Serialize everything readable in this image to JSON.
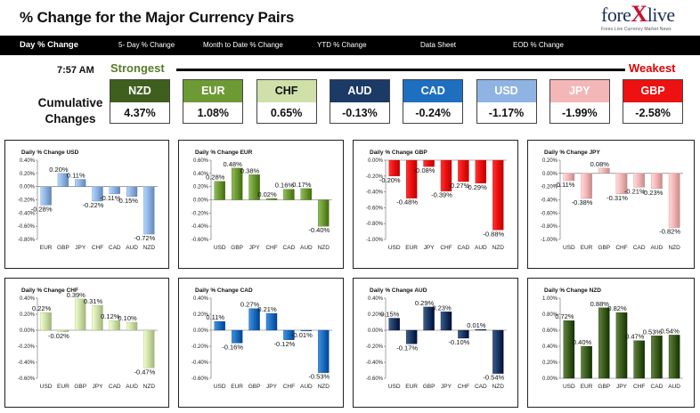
{
  "header": {
    "title": "% Change for the Major Currency Pairs"
  },
  "logo": {
    "main_a": "fore",
    "main_x": "X",
    "main_b": "live",
    "tagline": "Forex Live Currency Market News"
  },
  "tabs": [
    "Day % Change",
    "5- Day % Change",
    "Month to Date % Change",
    "YTD % Change",
    "Data Sheet",
    "EOD % Change"
  ],
  "summary": {
    "time": "7:57 AM",
    "strongest_label": "Strongest",
    "weakest_label": "Weakest",
    "cumulative_label_1": "Cumulative",
    "cumulative_label_2": "Changes",
    "ranking": [
      {
        "currency": "NZD",
        "value": "4.37%",
        "color": "#3f5f1f",
        "text_color": "#ffffff"
      },
      {
        "currency": "EUR",
        "value": "1.08%",
        "color": "#6e9a36",
        "text_color": "#ffffff"
      },
      {
        "currency": "CHF",
        "value": "0.65%",
        "color": "#cfe0a8",
        "text_color": "#111111"
      },
      {
        "currency": "AUD",
        "value": "-0.13%",
        "color": "#1b3a66",
        "text_color": "#ffffff"
      },
      {
        "currency": "CAD",
        "value": "-0.24%",
        "color": "#1f6fc0",
        "text_color": "#ffffff"
      },
      {
        "currency": "USD",
        "value": "-1.17%",
        "color": "#8fb4e3",
        "text_color": "#ffffff"
      },
      {
        "currency": "JPY",
        "value": "-1.99%",
        "color": "#f4b7b7",
        "text_color": "#ffffff"
      },
      {
        "currency": "GBP",
        "value": "-2.58%",
        "color": "#ee1111",
        "text_color": "#ffffff"
      }
    ]
  },
  "chart_data": [
    {
      "type": "bar",
      "title": "Daily % Change USD",
      "categories": [
        "EUR",
        "GBP",
        "JPY",
        "CHF",
        "CAD",
        "AUD",
        "NZD"
      ],
      "values": [
        -0.28,
        0.2,
        0.11,
        -0.22,
        -0.11,
        -0.15,
        -0.72
      ],
      "labels": [
        "-0.28%",
        "0.20%",
        "0.11%",
        "-0.22%",
        "-0.11%",
        "-0.15%",
        "-0.72%"
      ],
      "ylim": [
        -0.8,
        0.4
      ],
      "yticks": [
        -0.8,
        -0.6,
        -0.4,
        -0.2,
        0,
        0.2,
        0.4
      ],
      "ytick_labels": [
        "-0.80%",
        "-0.60%",
        "-0.40%",
        "-0.20%",
        "0.00%",
        "0.20%",
        "0.40%"
      ],
      "color": "#8fb4e3"
    },
    {
      "type": "bar",
      "title": "Daily % Change EUR",
      "categories": [
        "USD",
        "GBP",
        "JPY",
        "CHF",
        "CAD",
        "AUD",
        "NZD"
      ],
      "values": [
        0.28,
        0.48,
        0.38,
        0.02,
        0.16,
        0.17,
        -0.4
      ],
      "labels": [
        "0.28%",
        "0.48%",
        "0.38%",
        "0.02%",
        "0.16%",
        "0.17%",
        "-0.40%"
      ],
      "ylim": [
        -0.6,
        0.6
      ],
      "yticks": [
        -0.6,
        -0.4,
        -0.2,
        0,
        0.2,
        0.4,
        0.6
      ],
      "ytick_labels": [
        "-0.60%",
        "-0.40%",
        "-0.20%",
        "0.00%",
        "0.20%",
        "0.40%",
        "0.60%"
      ],
      "color": "#6e9a36"
    },
    {
      "type": "bar",
      "title": "Daily % Change GBP",
      "categories": [
        "USD",
        "EUR",
        "JPY",
        "CHF",
        "CAD",
        "AUD",
        "NZD"
      ],
      "values": [
        -0.2,
        -0.48,
        -0.08,
        -0.39,
        -0.27,
        -0.29,
        -0.88
      ],
      "labels": [
        "-0.20%",
        "-0.48%",
        "-0.08%",
        "-0.39%",
        "-0.27%",
        "-0.29%",
        "-0.88%"
      ],
      "ylim": [
        -1.0,
        0
      ],
      "yticks": [
        -1.0,
        -0.8,
        -0.6,
        -0.4,
        -0.2,
        0
      ],
      "ytick_labels": [
        "-1.00%",
        "-0.80%",
        "-0.60%",
        "-0.40%",
        "-0.20%",
        "0.00%"
      ],
      "color": "#ee1111"
    },
    {
      "type": "bar",
      "title": "Daily % Change JPY",
      "categories": [
        "USD",
        "EUR",
        "GBP",
        "CHF",
        "CAD",
        "AUD",
        "NZD"
      ],
      "values": [
        -0.11,
        -0.38,
        0.08,
        -0.31,
        -0.21,
        -0.23,
        -0.82
      ],
      "labels": [
        "-0.11%",
        "-0.38%",
        "0.08%",
        "-0.31%",
        "-0.21%",
        "-0.23%",
        "-0.82%"
      ],
      "ylim": [
        -1.0,
        0.2
      ],
      "yticks": [
        -1.0,
        -0.8,
        -0.6,
        -0.4,
        -0.2,
        0,
        0.2
      ],
      "ytick_labels": [
        "-1.00%",
        "-0.80%",
        "-0.60%",
        "-0.40%",
        "-0.20%",
        "0.00%",
        "0.20%"
      ],
      "color": "#f4b7b7"
    },
    {
      "type": "bar",
      "title": "Daily % Change CHF",
      "categories": [
        "USD",
        "EUR",
        "GBP",
        "JPY",
        "CAD",
        "AUD",
        "NZD"
      ],
      "values": [
        0.22,
        -0.02,
        0.39,
        0.31,
        0.12,
        0.1,
        -0.47
      ],
      "labels": [
        "0.22%",
        "-0.02%",
        "0.39%",
        "0.31%",
        "0.12%",
        "0.10%",
        "-0.47%"
      ],
      "ylim": [
        -0.6,
        0.4
      ],
      "yticks": [
        -0.6,
        -0.4,
        -0.2,
        0,
        0.2,
        0.4
      ],
      "ytick_labels": [
        "-0.60%",
        "-0.40%",
        "-0.20%",
        "0.00%",
        "0.20%",
        "0.40%"
      ],
      "color": "#cfe0a8"
    },
    {
      "type": "bar",
      "title": "Daily % Change CAD",
      "categories": [
        "USD",
        "EUR",
        "GBP",
        "JPY",
        "CHF",
        "AUD",
        "NZD"
      ],
      "values": [
        0.11,
        -0.16,
        0.27,
        0.21,
        -0.12,
        -0.01,
        -0.53
      ],
      "labels": [
        "0.11%",
        "-0.16%",
        "0.27%",
        "0.21%",
        "-0.12%",
        "-0.01%",
        "-0.53%"
      ],
      "ylim": [
        -0.6,
        0.4
      ],
      "yticks": [
        -0.6,
        -0.4,
        -0.2,
        0,
        0.2,
        0.4
      ],
      "ytick_labels": [
        "-0.60%",
        "-0.40%",
        "-0.20%",
        "0.00%",
        "0.20%",
        "0.40%"
      ],
      "color": "#1f6fc0"
    },
    {
      "type": "bar",
      "title": "Daily % Change AUD",
      "categories": [
        "USD",
        "EUR",
        "GBP",
        "JPY",
        "CHF",
        "CAD",
        "NZD"
      ],
      "values": [
        0.15,
        -0.17,
        0.29,
        0.23,
        -0.1,
        0.01,
        -0.54
      ],
      "labels": [
        "0.15%",
        "-0.17%",
        "0.29%",
        "0.23%",
        "-0.10%",
        "0.01%",
        "-0.54%"
      ],
      "ylim": [
        -0.6,
        0.4
      ],
      "yticks": [
        -0.6,
        -0.4,
        -0.2,
        0,
        0.2,
        0.4
      ],
      "ytick_labels": [
        "-0.60%",
        "-0.40%",
        "-0.20%",
        "0.00%",
        "0.20%",
        "0.40%"
      ],
      "color": "#1b3a66"
    },
    {
      "type": "bar",
      "title": "Daily % Change NZD",
      "categories": [
        "USD",
        "EUR",
        "GBP",
        "JPY",
        "CHF",
        "CAD",
        "AUD"
      ],
      "values": [
        0.72,
        0.4,
        0.88,
        0.82,
        0.47,
        0.53,
        0.54
      ],
      "labels": [
        "0.72%",
        "0.40%",
        "0.88%",
        "0.82%",
        "0.47%",
        "0.53%",
        "0.54%"
      ],
      "ylim": [
        0,
        1.0
      ],
      "yticks": [
        0,
        0.2,
        0.4,
        0.6,
        0.8,
        1.0
      ],
      "ytick_labels": [
        "0.00%",
        "0.20%",
        "0.40%",
        "0.60%",
        "0.80%",
        "1.00%"
      ],
      "color": "#3f5f1f"
    }
  ]
}
